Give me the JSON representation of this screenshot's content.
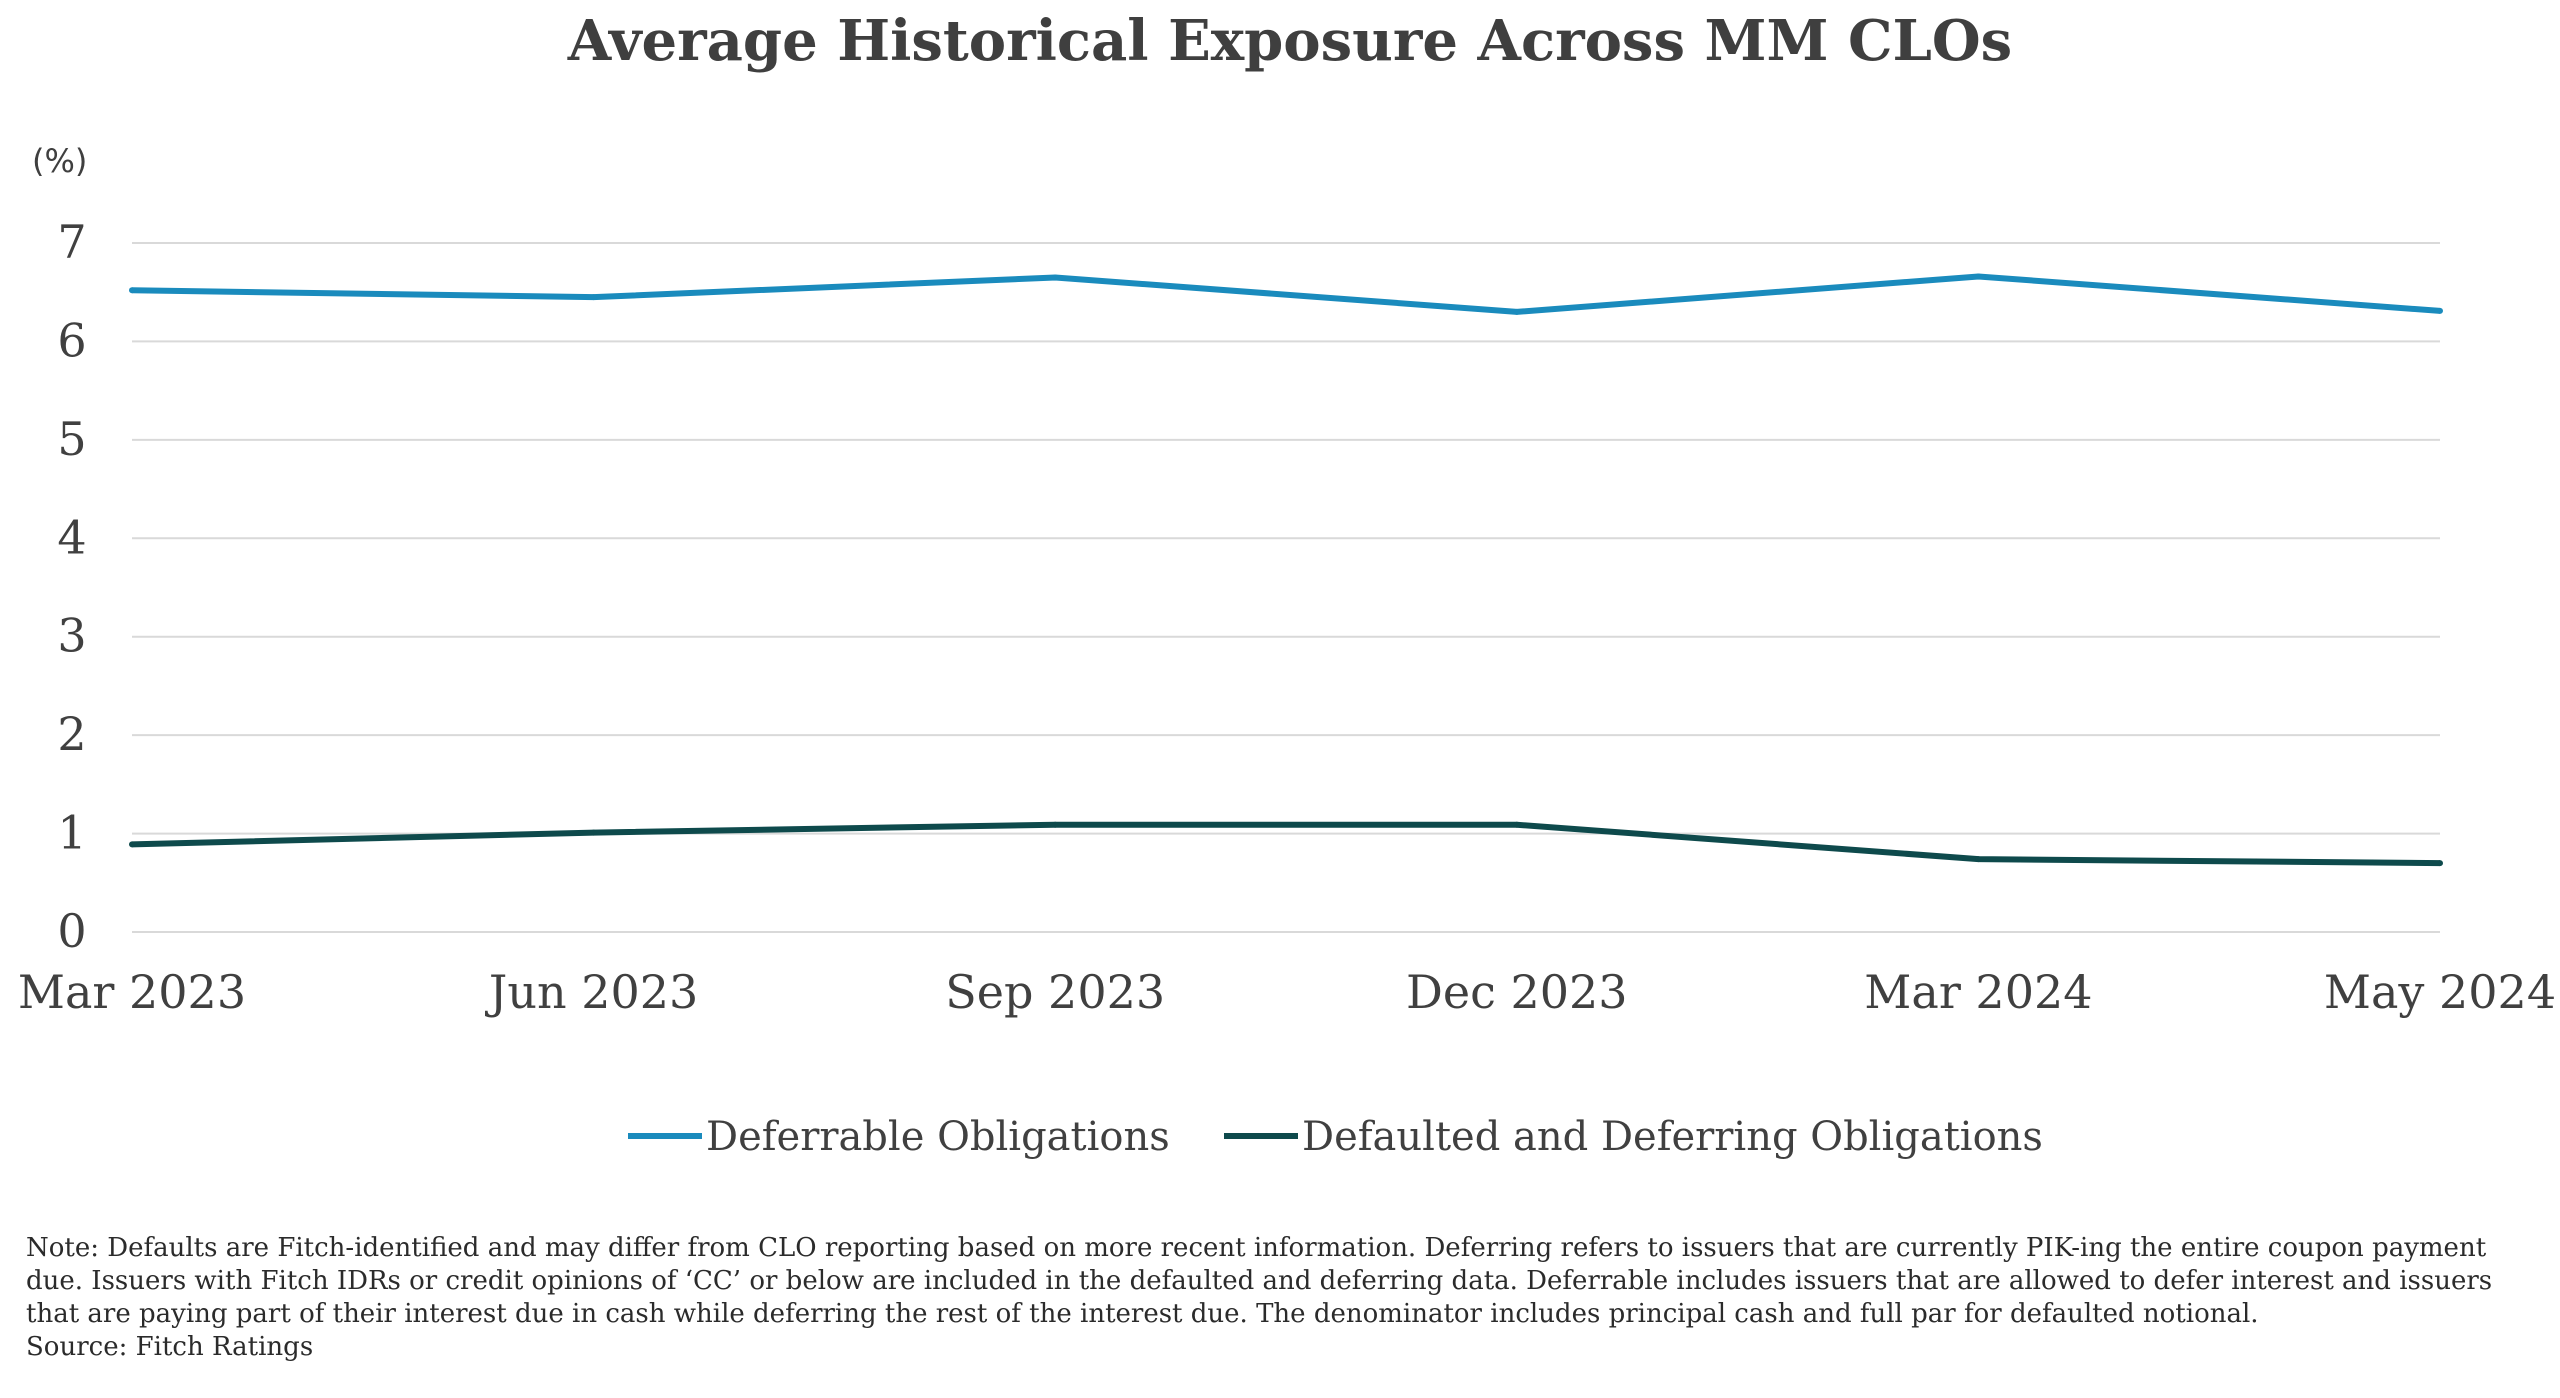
{
  "chart_data": {
    "type": "line",
    "title": "Average Historical Exposure Across MM CLOs",
    "ylabel": "(%)",
    "xlabel": "",
    "ylim": [
      0,
      7
    ],
    "yticks": [
      "0",
      "1",
      "2",
      "3",
      "4",
      "5",
      "6",
      "7"
    ],
    "categories": [
      "Mar 2023",
      "Jun 2023",
      "Sep 2023",
      "Dec 2023",
      "Mar 2024",
      "May 2024"
    ],
    "grid": true,
    "legend_position": "bottom",
    "series": [
      {
        "name": "Deferrable Obligations",
        "color": "#1a8bbd",
        "values": [
          6.52,
          6.45,
          6.65,
          6.3,
          6.66,
          6.31
        ]
      },
      {
        "name": "Defaulted and Deferring Obligations",
        "color": "#0e4a4c",
        "values": [
          0.89,
          1.01,
          1.09,
          1.09,
          0.74,
          0.7
        ]
      }
    ]
  },
  "note": "Note: Defaults are Fitch-identified and may differ from CLO reporting based on more recent information.  Deferring refers to issuers that are currently PIK-ing the entire coupon payment due.  Issuers with Fitch IDRs or credit opinions of ‘CC’ or below are included in the defaulted and deferring data. Deferrable includes issuers that are allowed to defer interest and issuers that are paying part of their interest due in cash while deferring the rest of the interest due. The denominator includes principal cash and full par for defaulted notional.",
  "source": "Source: Fitch Ratings"
}
